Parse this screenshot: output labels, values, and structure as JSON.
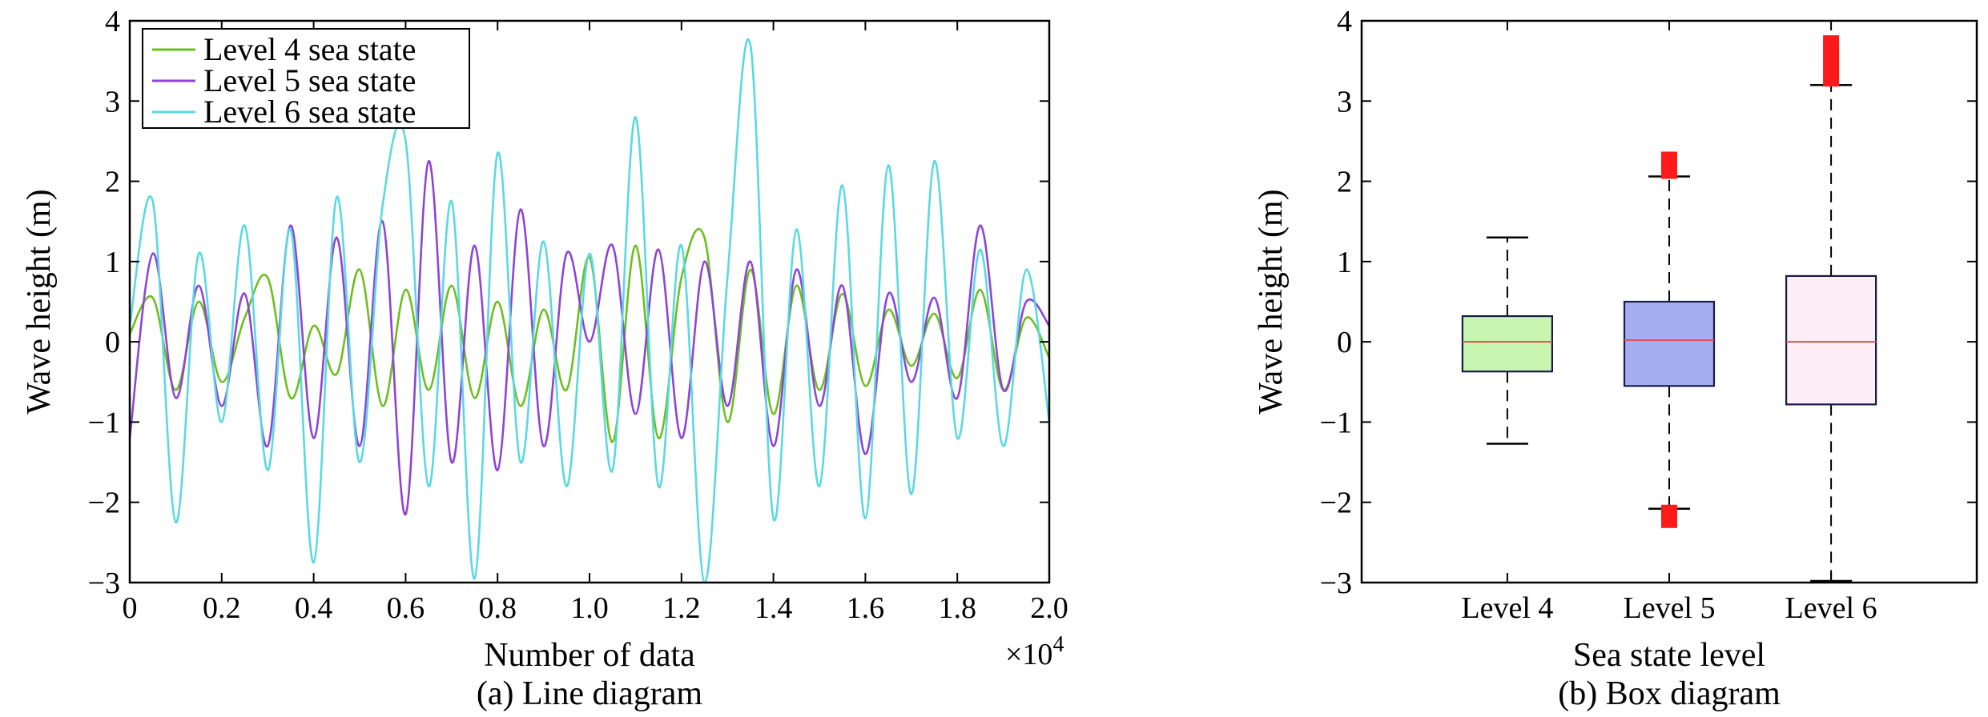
{
  "chart_data": [
    {
      "type": "line",
      "caption": "(a) Line diagram",
      "xlabel": "Number of data",
      "x_multiplier": "×10",
      "x_multiplier_exp": "4",
      "ylabel": "Wave height (m)",
      "xlim": [
        0,
        20000
      ],
      "ylim": [
        -3,
        4
      ],
      "xticks": [
        0,
        2000,
        4000,
        6000,
        8000,
        10000,
        12000,
        14000,
        16000,
        18000,
        20000
      ],
      "xtick_labels": [
        "0",
        "0.2",
        "0.4",
        "0.6",
        "0.8",
        "1.0",
        "1.2",
        "1.4",
        "1.6",
        "1.8",
        "2.0"
      ],
      "yticks": [
        -3,
        -2,
        -1,
        0,
        1,
        2,
        3,
        4
      ],
      "ytick_labels": [
        "−3",
        "−2",
        "−1",
        "0",
        "1",
        "2",
        "3",
        "4"
      ],
      "grid": false,
      "legend_position": "top-left",
      "series": [
        {
          "name": "Level 4 sea state",
          "color": "#6cbf1f",
          "x": [
            0,
            500,
            1000,
            1500,
            2000,
            2500,
            3000,
            3500,
            4000,
            4500,
            5000,
            5500,
            6000,
            6500,
            7000,
            7500,
            8000,
            8500,
            9000,
            9500,
            10000,
            10500,
            11000,
            11500,
            12000,
            12500,
            13000,
            13500,
            14000,
            14500,
            15000,
            15500,
            16000,
            16500,
            17000,
            17500,
            18000,
            18500,
            19000,
            19500,
            20000
          ],
          "values": [
            0.1,
            0.55,
            -0.6,
            0.5,
            -0.5,
            0.3,
            0.8,
            -0.7,
            0.2,
            -0.4,
            0.9,
            -0.8,
            0.65,
            -0.6,
            0.7,
            -0.7,
            0.5,
            -0.8,
            0.4,
            -0.6,
            1.05,
            -1.25,
            1.2,
            -1.2,
            0.8,
            1.3,
            -1.0,
            0.9,
            -0.9,
            0.7,
            -0.6,
            0.6,
            -0.55,
            0.4,
            -0.3,
            0.35,
            -0.45,
            0.65,
            -0.6,
            0.3,
            -0.2
          ]
        },
        {
          "name": "Level 5 sea state",
          "color": "#8e44d6",
          "x": [
            0,
            500,
            1000,
            1500,
            2000,
            2500,
            3000,
            3500,
            4000,
            4500,
            5000,
            5500,
            6000,
            6500,
            7000,
            7500,
            8000,
            8500,
            9000,
            9500,
            10000,
            10500,
            11000,
            11500,
            12000,
            12500,
            13000,
            13500,
            14000,
            14500,
            15000,
            15500,
            16000,
            16500,
            17000,
            17500,
            18000,
            18500,
            19000,
            19500,
            20000
          ],
          "values": [
            -1.2,
            1.1,
            -0.7,
            0.7,
            -0.8,
            0.6,
            -1.3,
            1.45,
            -1.2,
            1.3,
            -1.3,
            1.5,
            -2.15,
            2.25,
            -1.5,
            1.2,
            -1.6,
            1.65,
            -1.3,
            1.1,
            0.0,
            1.2,
            -0.9,
            1.15,
            -1.2,
            1.0,
            -0.8,
            1.0,
            -1.3,
            0.9,
            -0.8,
            0.7,
            -1.4,
            0.6,
            -0.5,
            0.55,
            -0.7,
            1.45,
            -0.6,
            0.5,
            0.2
          ]
        },
        {
          "name": "Level 6 sea state",
          "color": "#5ad9e2",
          "x": [
            0,
            500,
            1000,
            1500,
            2000,
            2500,
            3000,
            3500,
            4000,
            4500,
            5000,
            5500,
            6000,
            6500,
            7000,
            7500,
            8000,
            8500,
            9000,
            9500,
            10000,
            10500,
            11000,
            11500,
            12000,
            12500,
            13000,
            13500,
            14000,
            14500,
            15000,
            15500,
            16000,
            16500,
            17000,
            17500,
            18000,
            18500,
            19000,
            19500,
            20000
          ],
          "values": [
            0.2,
            1.75,
            -2.25,
            1.1,
            -1.0,
            1.45,
            -1.6,
            1.4,
            -2.75,
            1.8,
            -1.5,
            1.7,
            2.5,
            -1.8,
            1.75,
            -2.95,
            2.35,
            -1.5,
            1.25,
            -1.8,
            1.1,
            -1.6,
            2.8,
            -1.8,
            1.2,
            -3.0,
            0.8,
            3.7,
            -2.2,
            1.4,
            -1.8,
            1.95,
            -2.2,
            2.2,
            -1.9,
            2.25,
            -1.2,
            1.15,
            -1.3,
            0.9,
            -1.0
          ]
        }
      ]
    },
    {
      "type": "box",
      "caption": "(b) Box diagram",
      "xlabel": "Sea state level",
      "ylabel": "Wave height (m)",
      "ylim": [
        -3,
        4
      ],
      "yticks": [
        -3,
        -2,
        -1,
        0,
        1,
        2,
        3,
        4
      ],
      "ytick_labels": [
        "−3",
        "−2",
        "−1",
        "0",
        "1",
        "2",
        "3",
        "4"
      ],
      "grid": false,
      "categories": [
        "Level 4",
        "Level 5",
        "Level 6"
      ],
      "boxes": [
        {
          "category": "Level 4",
          "fill": "#c8f5b0",
          "whisker_low": -1.27,
          "q1": -0.37,
          "median": 0.0,
          "q3": 0.32,
          "whisker_high": 1.3,
          "outliers_low": [],
          "outliers_high": []
        },
        {
          "category": "Level 5",
          "fill": "#a6aef2",
          "whisker_low": -2.08,
          "q1": -0.55,
          "median": 0.02,
          "q3": 0.5,
          "whisker_high": 2.06,
          "outliers_low": [
            -2.1,
            -2.15,
            -2.2,
            -2.25
          ],
          "outliers_high": [
            2.1,
            2.15,
            2.2,
            2.25,
            2.3
          ]
        },
        {
          "category": "Level 6",
          "fill": "#fdeef8",
          "whisker_low": -2.98,
          "q1": -0.78,
          "median": 0.0,
          "q3": 0.82,
          "whisker_high": 3.2,
          "outliers_low": [],
          "outliers_high": [
            3.25,
            3.35,
            3.45,
            3.55,
            3.65,
            3.75
          ]
        }
      ],
      "outlier_color": "#ff1a1a",
      "median_color": "#e05050"
    }
  ]
}
